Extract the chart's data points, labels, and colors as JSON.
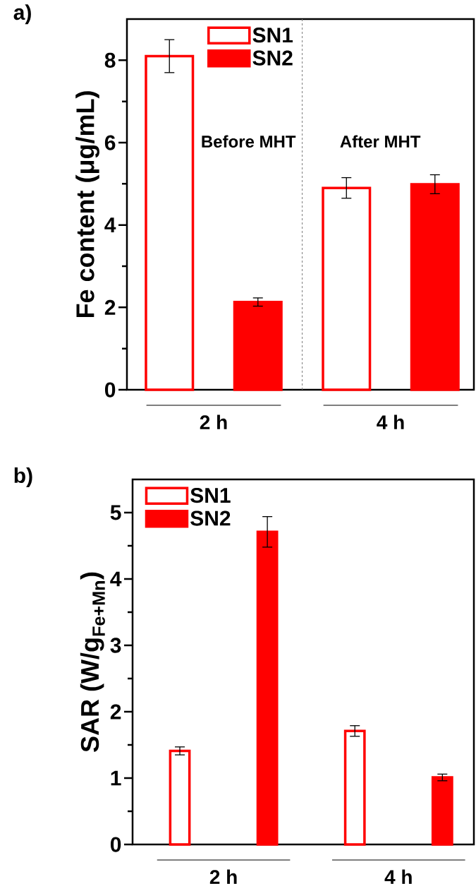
{
  "chart_data": [
    {
      "type": "bar",
      "title": "a)",
      "ylabel": "Fe content (μg/mL)",
      "categories": [
        "2 h",
        "4 h"
      ],
      "series": [
        {
          "name": "SN1",
          "color": "#ff0000",
          "values": [
            8.1,
            4.9
          ],
          "errors": [
            0.4,
            0.25
          ]
        },
        {
          "name": "SN2",
          "color": "#ff0000",
          "values": [
            2.13,
            4.99
          ],
          "errors": [
            0.1,
            0.23
          ]
        }
      ],
      "ylim": [
        0,
        9
      ],
      "yticks": [
        0,
        {
          "value": 1,
          "label": null
        },
        2,
        {
          "value": 3,
          "label": null
        },
        4,
        {
          "value": 5,
          "label": null
        },
        6,
        {
          "value": 7,
          "label": null
        },
        8
      ],
      "annotations": [
        "Before MHT",
        "After MHT"
      ],
      "legend": "top"
    },
    {
      "type": "bar",
      "title": "b)",
      "ylabel": "SAR (W/g$_{Fe+Mn}$)",
      "categories": [
        "2 h",
        "4 h"
      ],
      "series": [
        {
          "name": "SN1",
          "color": "#ff0000",
          "values": [
            1.41,
            1.71
          ],
          "errors": [
            0.06,
            0.08
          ]
        },
        {
          "name": "SN2",
          "color": "#ff0000",
          "values": [
            4.71,
            1.01
          ],
          "errors": [
            0.23,
            0.05
          ]
        }
      ],
      "ylim": [
        0,
        5.5
      ],
      "yticks": [
        0,
        {
          "value": 0.5,
          "label": null
        },
        1,
        {
          "value": 1.5,
          "label": null
        },
        2,
        {
          "value": 2.5,
          "label": null
        },
        3,
        {
          "value": 3.5,
          "label": null
        },
        4,
        {
          "value": 4.5,
          "label": null
        },
        5
      ],
      "legend": "top left"
    }
  ]
}
